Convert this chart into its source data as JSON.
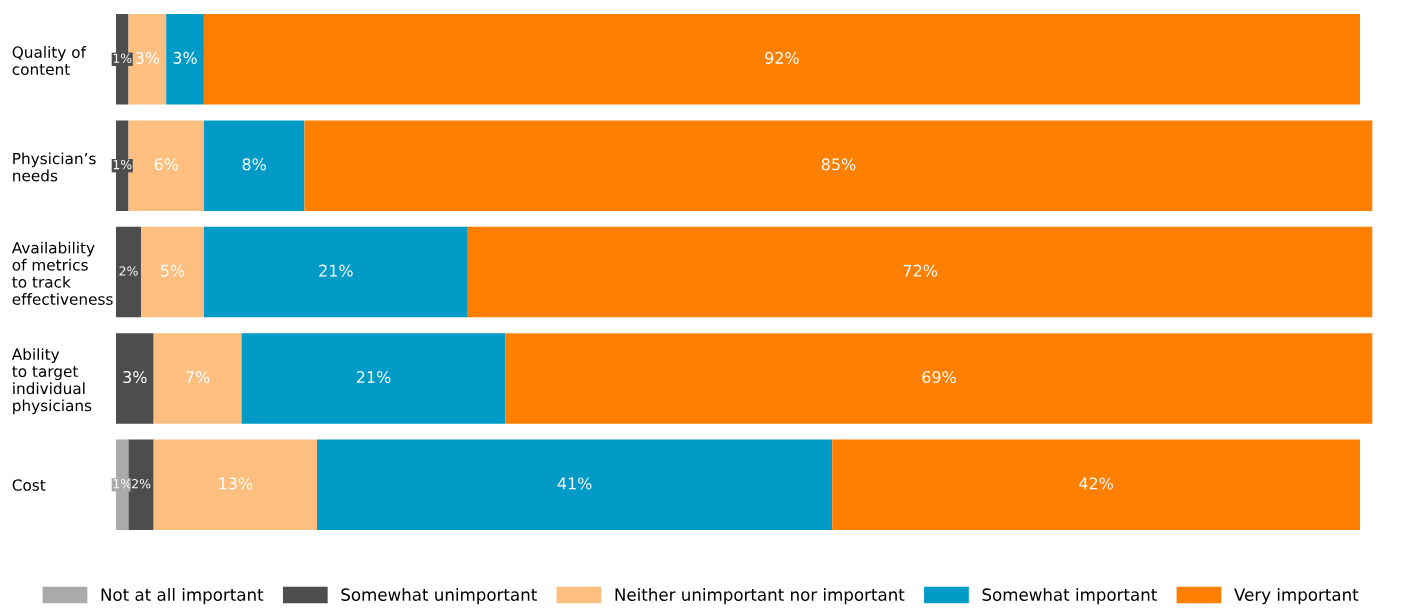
{
  "chart_data": {
    "type": "bar",
    "orientation": "horizontal",
    "stacked": true,
    "legend": "bottom",
    "categories": [
      "Quality of\ncontent",
      "Physician’s\nneeds",
      "Availability\nof metrics\nto track\neffectiveness",
      "Ability\nto target\nindividual\nphysicians",
      "Cost"
    ],
    "series": [
      {
        "name": "Not at all important",
        "color": "#aaaaaa",
        "values": [
          null,
          null,
          null,
          null,
          1
        ],
        "value_labels": [
          null,
          null,
          null,
          null,
          "1%"
        ]
      },
      {
        "name": "Somewhat unimportant",
        "color": "#4d4d4d",
        "values": [
          1,
          1,
          2,
          3,
          2
        ],
        "value_labels": [
          "1%",
          "1%",
          "2%",
          "3%",
          "2%"
        ]
      },
      {
        "name": "Neither unimportant nor important",
        "color": "#fdbf80",
        "values": [
          3,
          6,
          5,
          7,
          13
        ],
        "value_labels": [
          "3%",
          "6%",
          "5%",
          "7%",
          "13%"
        ]
      },
      {
        "name": "Somewhat important",
        "color": "#009ac7",
        "values": [
          3,
          8,
          21,
          21,
          41
        ],
        "value_labels": [
          "3%",
          "8%",
          "21%",
          "21%",
          "41%"
        ]
      },
      {
        "name": "Very important",
        "color": "#ff7f00",
        "values": [
          92,
          85,
          72,
          69,
          42
        ],
        "value_labels": [
          "92%",
          "85%",
          "72%",
          "69%",
          "42%"
        ]
      }
    ]
  }
}
